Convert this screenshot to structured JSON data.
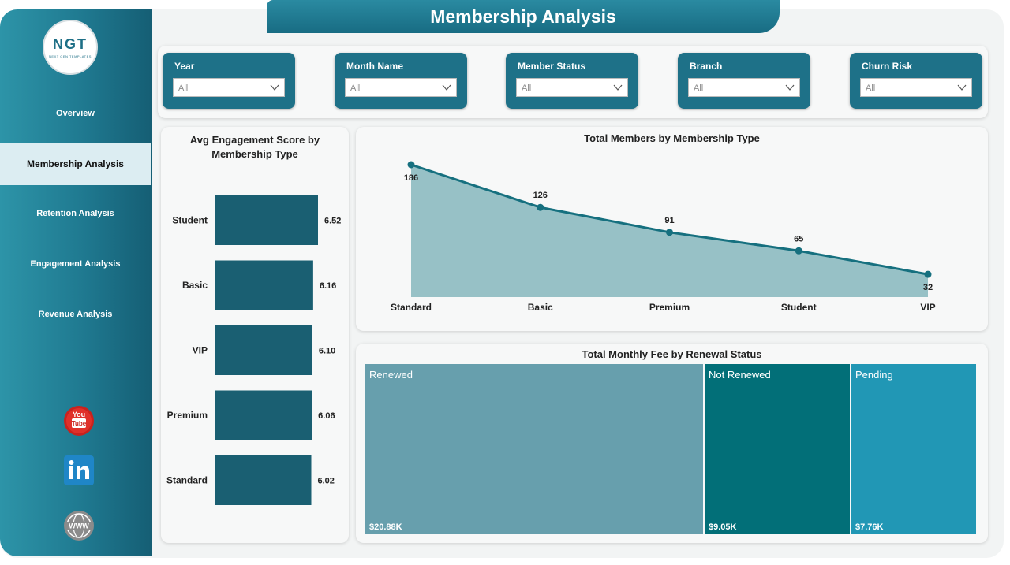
{
  "title": "Membership Analysis",
  "logo": {
    "text": "NGT",
    "subtext": "NEXT GEN TEMPLATES"
  },
  "nav": [
    {
      "label": "Overview",
      "active": false
    },
    {
      "label": "Membership Analysis",
      "active": true
    },
    {
      "label": "Retention Analysis",
      "active": false
    },
    {
      "label": "Engagement Analysis",
      "active": false
    },
    {
      "label": "Revenue Analysis",
      "active": false
    }
  ],
  "social": [
    {
      "icon": "youtube-icon",
      "text": "You Tube"
    },
    {
      "icon": "linkedin-icon",
      "text": "in"
    },
    {
      "icon": "www-globe-icon",
      "text": "WWW"
    }
  ],
  "filters": [
    {
      "label": "Year",
      "value": "All"
    },
    {
      "label": "Month Name",
      "value": "All"
    },
    {
      "label": "Member Status",
      "value": "All"
    },
    {
      "label": "Branch",
      "value": "All"
    },
    {
      "label": "Churn Risk",
      "value": "All"
    }
  ],
  "colors": {
    "primary": "#1e7188",
    "bar": "#1a5f72",
    "area_fill": "#97c1c6",
    "area_line": "#16707f",
    "renewed": "#679fad",
    "not_renewed": "#026f78",
    "pending": "#2197b5"
  },
  "chart_data": [
    {
      "type": "bar",
      "orientation": "horizontal",
      "title": "Avg Engagement Score by Membership Type",
      "categories": [
        "Student",
        "Basic",
        "VIP",
        "Premium",
        "Standard"
      ],
      "values": [
        6.52,
        6.16,
        6.1,
        6.06,
        6.02
      ],
      "value_labels": [
        "6.52",
        "6.16",
        "6.10",
        "6.06",
        "6.02"
      ]
    },
    {
      "type": "area",
      "title": "Total Members by Membership Type",
      "categories": [
        "Standard",
        "Basic",
        "Premium",
        "Student",
        "VIP"
      ],
      "values": [
        186,
        126,
        91,
        65,
        32
      ]
    },
    {
      "type": "treemap",
      "title": "Total Monthly Fee by Renewal Status",
      "categories": [
        "Renewed",
        "Not Renewed",
        "Pending"
      ],
      "values": [
        20.88,
        9.05,
        7.76
      ],
      "value_labels": [
        "$20.88K",
        "$9.05K",
        "$7.76K"
      ]
    }
  ]
}
